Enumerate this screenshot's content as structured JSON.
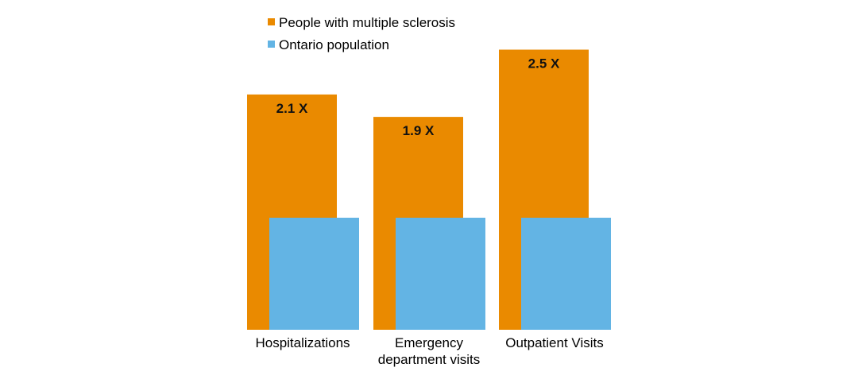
{
  "chart_data": {
    "type": "bar",
    "title": "",
    "xlabel": "",
    "ylabel": "",
    "ylim": [
      0,
      2.6
    ],
    "grid": false,
    "legend_position": "top",
    "categories": [
      [
        "Hospitalizations"
      ],
      [
        "Emergency",
        "department visits"
      ],
      [
        "Outpatient Visits"
      ]
    ],
    "series": [
      {
        "name": "People with multiple sclerosis",
        "color": "#EA8A00",
        "values": [
          2.1,
          1.9,
          2.5
        ],
        "data_labels": [
          "2.1 X",
          "1.9 X",
          "2.5 X"
        ]
      },
      {
        "name": "Ontario population",
        "color": "#63B4E4",
        "values": [
          1.0,
          1.0,
          1.0
        ],
        "data_labels": [
          "",
          "",
          ""
        ]
      }
    ]
  }
}
